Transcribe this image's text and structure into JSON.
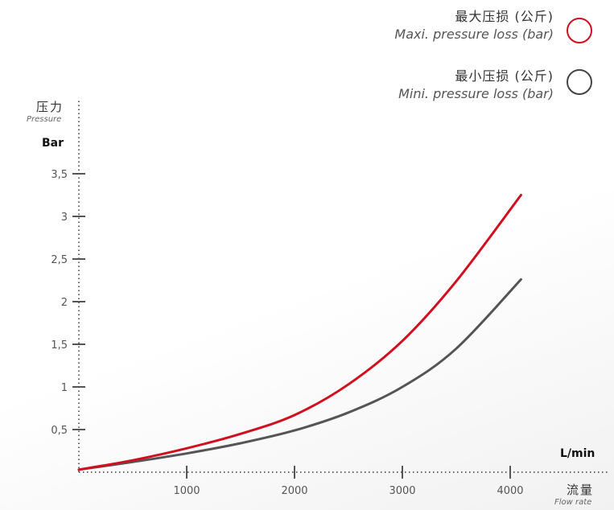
{
  "legend": [
    {
      "label_cn": "最大压损 (公斤)",
      "label_en": "Maxi. pressure loss (bar)",
      "color": "#d0101e"
    },
    {
      "label_cn": "最小压损 (公斤)",
      "label_en": "Mini. pressure loss (bar)",
      "color": "#555555"
    }
  ],
  "axes": {
    "y_title_cn": "压力",
    "y_title_en": "Pressure",
    "y_unit": "Bar",
    "x_unit": "L/min",
    "x_title_cn": "流量",
    "x_title_en": "Flow rate"
  },
  "chart_data": {
    "type": "line",
    "xlabel": "流量 Flow rate (L/min)",
    "ylabel": "压力 Pressure (Bar)",
    "xlim": [
      0,
      4500
    ],
    "ylim": [
      0,
      4.2
    ],
    "x_ticks": [
      1000,
      2000,
      3000,
      4000
    ],
    "x_tick_labels": [
      "1000",
      "2000",
      "3000",
      "4000"
    ],
    "y_ticks": [
      0.5,
      1,
      1.5,
      2,
      2.5,
      3,
      3.5
    ],
    "y_tick_labels": [
      "0,5",
      "1",
      "1,5",
      "2",
      "2,5",
      "3",
      "3,5"
    ],
    "grid": false,
    "legend_position": "top-right",
    "series": [
      {
        "name": "最大压损 (公斤) Maxi. pressure loss (bar)",
        "color": "#d0101e",
        "x": [
          0,
          500,
          1000,
          1500,
          2000,
          2500,
          3000,
          3500,
          4100
        ],
        "y": [
          0.03,
          0.14,
          0.28,
          0.45,
          0.67,
          1.03,
          1.54,
          2.24,
          3.25
        ]
      },
      {
        "name": "最小压损 (公斤) Mini. pressure loss (bar)",
        "color": "#555555",
        "x": [
          0,
          500,
          1000,
          1500,
          2000,
          2500,
          3000,
          3500,
          4100
        ],
        "y": [
          0.03,
          0.12,
          0.22,
          0.34,
          0.49,
          0.7,
          1.0,
          1.45,
          2.26
        ]
      }
    ]
  }
}
